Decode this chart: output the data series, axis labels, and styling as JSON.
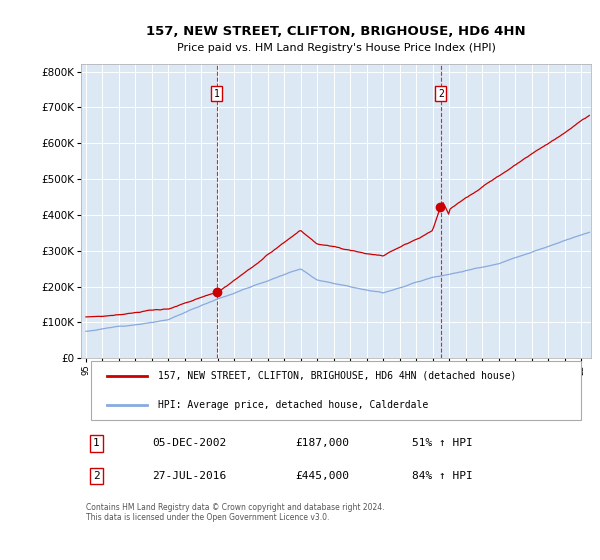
{
  "title": "157, NEW STREET, CLIFTON, BRIGHOUSE, HD6 4HN",
  "subtitle": "Price paid vs. HM Land Registry's House Price Index (HPI)",
  "property_label": "157, NEW STREET, CLIFTON, BRIGHOUSE, HD6 4HN (detached house)",
  "hpi_label": "HPI: Average price, detached house, Calderdale",
  "transaction1_date": "05-DEC-2002",
  "transaction1_price": "£187,000",
  "transaction1_hpi": "51% ↑ HPI",
  "transaction2_date": "27-JUL-2016",
  "transaction2_price": "£445,000",
  "transaction2_hpi": "84% ↑ HPI",
  "footer": "Contains HM Land Registry data © Crown copyright and database right 2024.\nThis data is licensed under the Open Government Licence v3.0.",
  "property_color": "#cc0000",
  "hpi_color": "#88aadd",
  "vline_color": "#cc0000",
  "plot_bg_color": "#dde8f5",
  "background_color": "#ffffff",
  "grid_color": "#ffffff",
  "yticks": [
    0,
    100000,
    200000,
    300000,
    400000,
    500000,
    600000,
    700000,
    800000
  ],
  "ylim_max": 820000,
  "t1_year": 2002.92,
  "t2_year": 2016.5
}
